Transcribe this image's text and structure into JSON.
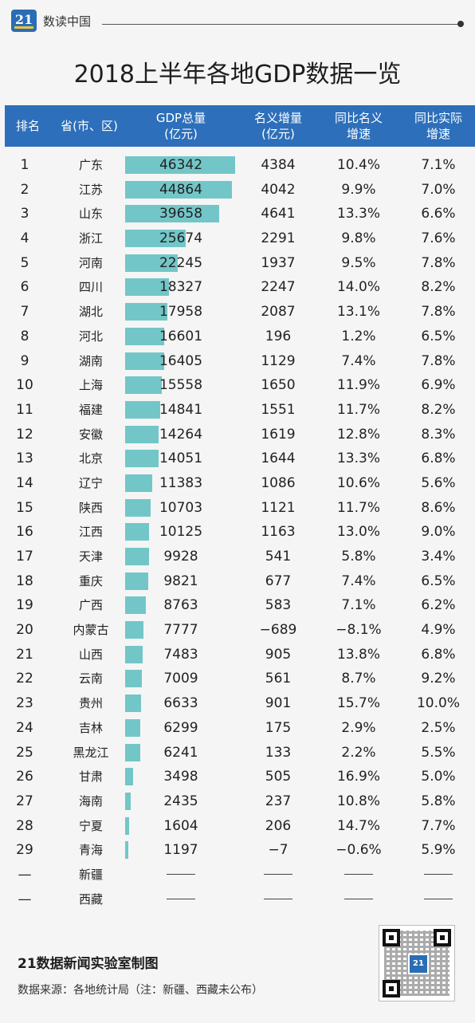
{
  "header": {
    "logo_text": "21",
    "brand": "数读中国"
  },
  "title": "2018上半年各地GDP数据一览",
  "columns": {
    "rank": "排名",
    "province": "省(市、区)",
    "gdp_line1": "GDP总量",
    "gdp_line2": "(亿元)",
    "increase_line1": "名义增量",
    "increase_line2": "(亿元)",
    "nominal_line1": "同比名义",
    "nominal_line2": "增速",
    "real_line1": "同比实际",
    "real_line2": "增速"
  },
  "colors": {
    "header_bg": "#2d6fba",
    "bar": "#73c6c8",
    "background": "#f5f5f5"
  },
  "chart_data": {
    "type": "table",
    "title": "2018上半年各地GDP数据一览",
    "bar_column": "GDP总量",
    "rows": [
      {
        "rank": "1",
        "province": "广东",
        "gdp": 46342,
        "increase": "4384",
        "nominal": "10.4%",
        "real": "7.1%"
      },
      {
        "rank": "2",
        "province": "江苏",
        "gdp": 44864,
        "increase": "4042",
        "nominal": "9.9%",
        "real": "7.0%"
      },
      {
        "rank": "3",
        "province": "山东",
        "gdp": 39658,
        "increase": "4641",
        "nominal": "13.3%",
        "real": "6.6%"
      },
      {
        "rank": "4",
        "province": "浙江",
        "gdp": 25674,
        "increase": "2291",
        "nominal": "9.8%",
        "real": "7.6%"
      },
      {
        "rank": "5",
        "province": "河南",
        "gdp": 22245,
        "increase": "1937",
        "nominal": "9.5%",
        "real": "7.8%"
      },
      {
        "rank": "6",
        "province": "四川",
        "gdp": 18327,
        "increase": "2247",
        "nominal": "14.0%",
        "real": "8.2%"
      },
      {
        "rank": "7",
        "province": "湖北",
        "gdp": 17958,
        "increase": "2087",
        "nominal": "13.1%",
        "real": "7.8%"
      },
      {
        "rank": "8",
        "province": "河北",
        "gdp": 16601,
        "increase": "196",
        "nominal": "1.2%",
        "real": "6.5%"
      },
      {
        "rank": "9",
        "province": "湖南",
        "gdp": 16405,
        "increase": "1129",
        "nominal": "7.4%",
        "real": "7.8%"
      },
      {
        "rank": "10",
        "province": "上海",
        "gdp": 15558,
        "increase": "1650",
        "nominal": "11.9%",
        "real": "6.9%"
      },
      {
        "rank": "11",
        "province": "福建",
        "gdp": 14841,
        "increase": "1551",
        "nominal": "11.7%",
        "real": "8.2%"
      },
      {
        "rank": "12",
        "province": "安徽",
        "gdp": 14264,
        "increase": "1619",
        "nominal": "12.8%",
        "real": "8.3%"
      },
      {
        "rank": "13",
        "province": "北京",
        "gdp": 14051,
        "increase": "1644",
        "nominal": "13.3%",
        "real": "6.8%"
      },
      {
        "rank": "14",
        "province": "辽宁",
        "gdp": 11383,
        "increase": "1086",
        "nominal": "10.6%",
        "real": "5.6%"
      },
      {
        "rank": "15",
        "province": "陕西",
        "gdp": 10703,
        "increase": "1121",
        "nominal": "11.7%",
        "real": "8.6%"
      },
      {
        "rank": "16",
        "province": "江西",
        "gdp": 10125,
        "increase": "1163",
        "nominal": "13.0%",
        "real": "9.0%"
      },
      {
        "rank": "17",
        "province": "天津",
        "gdp": 9928,
        "increase": "541",
        "nominal": "5.8%",
        "real": "3.4%"
      },
      {
        "rank": "18",
        "province": "重庆",
        "gdp": 9821,
        "increase": "677",
        "nominal": "7.4%",
        "real": "6.5%"
      },
      {
        "rank": "19",
        "province": "广西",
        "gdp": 8763,
        "increase": "583",
        "nominal": "7.1%",
        "real": "6.2%"
      },
      {
        "rank": "20",
        "province": "内蒙古",
        "gdp": 7777,
        "increase": "−689",
        "nominal": "−8.1%",
        "real": "4.9%"
      },
      {
        "rank": "21",
        "province": "山西",
        "gdp": 7483,
        "increase": "905",
        "nominal": "13.8%",
        "real": "6.8%"
      },
      {
        "rank": "22",
        "province": "云南",
        "gdp": 7009,
        "increase": "561",
        "nominal": "8.7%",
        "real": "9.2%"
      },
      {
        "rank": "23",
        "province": "贵州",
        "gdp": 6633,
        "increase": "901",
        "nominal": "15.7%",
        "real": "10.0%"
      },
      {
        "rank": "24",
        "province": "吉林",
        "gdp": 6299,
        "increase": "175",
        "nominal": "2.9%",
        "real": "2.5%"
      },
      {
        "rank": "25",
        "province": "黑龙江",
        "gdp": 6241,
        "increase": "133",
        "nominal": "2.2%",
        "real": "5.5%"
      },
      {
        "rank": "26",
        "province": "甘肃",
        "gdp": 3498,
        "increase": "505",
        "nominal": "16.9%",
        "real": "5.0%"
      },
      {
        "rank": "27",
        "province": "海南",
        "gdp": 2435,
        "increase": "237",
        "nominal": "10.8%",
        "real": "5.8%"
      },
      {
        "rank": "28",
        "province": "宁夏",
        "gdp": 1604,
        "increase": "206",
        "nominal": "14.7%",
        "real": "7.7%"
      },
      {
        "rank": "29",
        "province": "青海",
        "gdp": 1197,
        "increase": "−7",
        "nominal": "−0.6%",
        "real": "5.9%"
      },
      {
        "rank": "—",
        "province": "新疆",
        "gdp": null,
        "increase": null,
        "nominal": null,
        "real": null
      },
      {
        "rank": "—",
        "province": "西藏",
        "gdp": null,
        "increase": null,
        "nominal": null,
        "real": null
      }
    ]
  },
  "footer": {
    "credit": "21数据新闻实验室制图",
    "source": "数据来源：各地统计局（注：新疆、西藏未公布）",
    "qr_logo": "21"
  }
}
